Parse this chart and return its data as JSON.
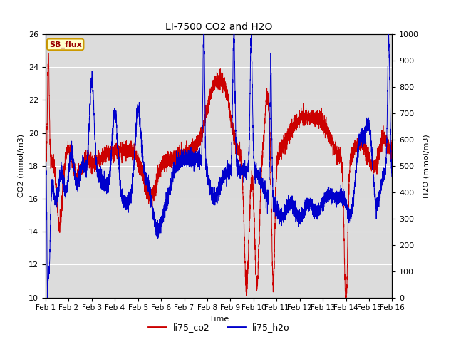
{
  "title": "LI-7500 CO2 and H2O",
  "xlabel": "Time",
  "ylabel_left": "CO2 (mmol/m3)",
  "ylabel_right": "H2O (mmol/m3)",
  "ylim_left": [
    10,
    26
  ],
  "ylim_right": [
    0,
    1000
  ],
  "yticks_left": [
    10,
    12,
    14,
    16,
    18,
    20,
    22,
    24,
    26
  ],
  "yticks_right": [
    0,
    100,
    200,
    300,
    400,
    500,
    600,
    700,
    800,
    900,
    1000
  ],
  "background_color": "#dcdcdc",
  "fig_background": "#ffffff",
  "co2_color": "#cc0000",
  "h2o_color": "#0000cc",
  "legend_co2": "li75_co2",
  "legend_h2o": "li75_h2o",
  "annotation_text": "SB_flux",
  "annotation_bg": "#ffffcc",
  "annotation_border": "#cc9900",
  "annotation_text_color": "#990000",
  "x_tick_labels": [
    "Feb 1",
    "Feb 2",
    "Feb 3",
    "Feb 4",
    "Feb 5",
    "Feb 6",
    "Feb 7",
    "Feb 8",
    "Feb 9",
    "Feb 10",
    "Feb 11",
    "Feb 12",
    "Feb 13",
    "Feb 14",
    "Feb 15",
    "Feb 16"
  ],
  "num_points": 5000,
  "seed": 42
}
